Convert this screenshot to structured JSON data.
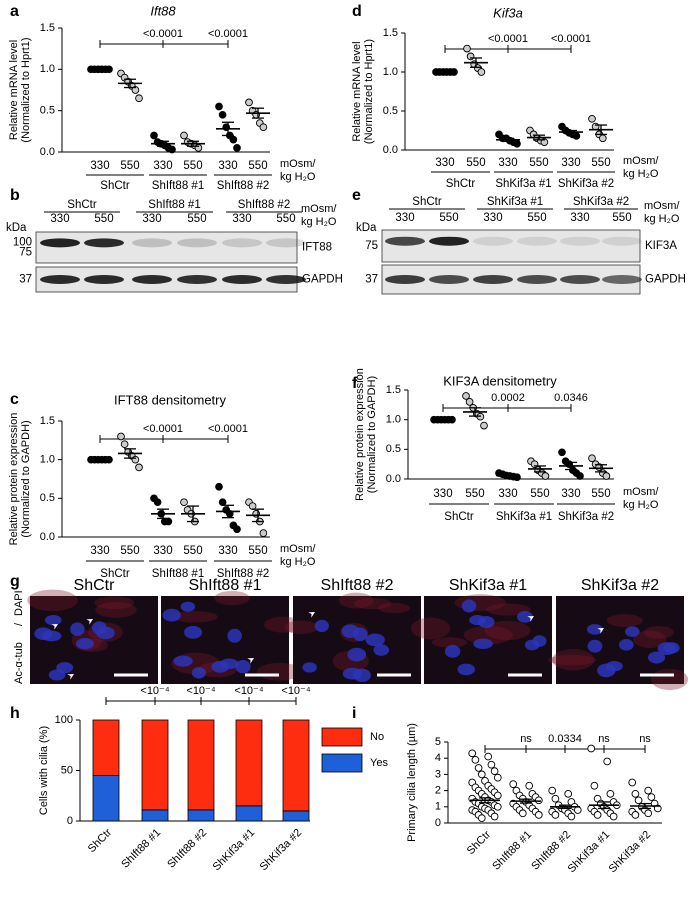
{
  "chart_data": [
    {
      "type": "dot",
      "label": "a",
      "title": "Ift88",
      "ylabel": [
        "Relative mRNA level",
        "(Normalized to Hprt1)"
      ],
      "categories": [
        "330",
        "550",
        "330",
        "550",
        "330",
        "550"
      ],
      "groups": [
        "ShCtr",
        "ShIft88 #1",
        "ShIft88 #2"
      ],
      "unit_label": [
        "mOsm/",
        "kg H₂O"
      ],
      "values": [
        [
          1,
          1,
          1,
          1,
          1,
          1
        ],
        [
          0.95,
          0.9,
          0.85,
          0.8,
          0.75,
          0.65
        ],
        [
          0.2,
          0.12,
          0.1,
          0.08,
          0.05,
          0.03
        ],
        [
          0.2,
          0.12,
          0.1,
          0.08,
          0.05
        ],
        [
          0.55,
          0.45,
          0.3,
          0.2,
          0.15,
          0.05
        ],
        [
          0.6,
          0.5,
          0.45,
          0.35,
          0.3
        ]
      ],
      "means": [
        1,
        0.83,
        0.1,
        0.1,
        0.28,
        0.47
      ],
      "errors": [
        0,
        0.05,
        0.03,
        0.03,
        0.08,
        0.06
      ],
      "fills": [
        "#000000",
        "#cccccc",
        "#000000",
        "#cccccc",
        "#000000",
        "#cccccc"
      ],
      "ylim": [
        0,
        1.5
      ],
      "yticks": [
        {
          "value": 0,
          "label": "0.0"
        },
        0.5,
        {
          "value": 1,
          "label": "1.0"
        },
        1.5
      ],
      "significance": [
        "<0.0001",
        "<0.0001"
      ]
    },
    {
      "type": "dot",
      "label": "d",
      "title": "Kif3a",
      "ylabel": [
        "Relative mRNA level",
        "(Normalized to Hprt1)"
      ],
      "categories": [
        "330",
        "550",
        "330",
        "550",
        "330",
        "550"
      ],
      "groups": [
        "ShCtr",
        "ShKif3a #1",
        "ShKif3a #2"
      ],
      "unit_label": [
        "mOsm/",
        "kg H₂O"
      ],
      "values": [
        [
          1,
          1,
          1,
          1,
          1,
          1
        ],
        [
          1.3,
          1.2,
          1.1,
          1.05,
          1.0
        ],
        [
          0.2,
          0.15,
          0.15,
          0.12,
          0.1,
          0.08
        ],
        [
          0.25,
          0.2,
          0.15,
          0.12,
          0.1
        ],
        [
          0.3,
          0.25,
          0.22,
          0.2,
          0.18
        ],
        [
          0.4,
          0.3,
          0.2,
          0.15
        ]
      ],
      "means": [
        1,
        1.12,
        0.13,
        0.16,
        0.23,
        0.26
      ],
      "errors": [
        0,
        0.06,
        0.02,
        0.03,
        0.02,
        0.06
      ],
      "fills": [
        "#000000",
        "#cccccc",
        "#000000",
        "#cccccc",
        "#000000",
        "#cccccc"
      ],
      "ylim": [
        0,
        1.5
      ],
      "yticks": [
        {
          "value": 0,
          "label": "0.0"
        },
        0.5,
        {
          "value": 1,
          "label": "1.0"
        },
        1.5
      ],
      "significance": [
        "<0.0001",
        "<0.0001"
      ]
    },
    {
      "type": "dot",
      "label": "c",
      "title": "IFT88 densitometry",
      "ylabel": [
        "Relative protein expression",
        "(Normalized to GAPDH)"
      ],
      "categories": [
        "330",
        "550",
        "330",
        "550",
        "330",
        "550"
      ],
      "groups": [
        "ShCtr",
        "ShIft88 #1",
        "ShIft88 #2"
      ],
      "unit_label": [
        "mOsm/",
        "kg H₂O"
      ],
      "values": [
        [
          1,
          1,
          1,
          1,
          1,
          1
        ],
        [
          1.3,
          1.2,
          1.1,
          1.05,
          1.0,
          0.9
        ],
        [
          0.5,
          0.45,
          0.3,
          0.2,
          0.2
        ],
        [
          0.45,
          0.35,
          0.3,
          0.2
        ],
        [
          0.65,
          0.45,
          0.35,
          0.3,
          0.15,
          0.1
        ],
        [
          0.45,
          0.4,
          0.3,
          0.2,
          0.05
        ]
      ],
      "means": [
        1,
        1.08,
        0.3,
        0.3,
        0.33,
        0.28
      ],
      "errors": [
        0,
        0.06,
        0.06,
        0.1,
        0.08,
        0.08
      ],
      "fills": [
        "#000000",
        "#cccccc",
        "#000000",
        "#cccccc",
        "#000000",
        "#cccccc"
      ],
      "ylim": [
        0,
        1.5
      ],
      "yticks": [
        {
          "value": 0,
          "label": "0.0"
        },
        0.5,
        {
          "value": 1,
          "label": "1.0"
        },
        1.5
      ],
      "significance": [
        "<0.0001",
        "<0.0001"
      ]
    },
    {
      "type": "dot",
      "label": "f",
      "title": "KIF3A densitometry",
      "ylabel": [
        "Relative protein expression",
        "(Normalized to GAPDH)"
      ],
      "categories": [
        "330",
        "550",
        "330",
        "550",
        "330",
        "550"
      ],
      "groups": [
        "ShCtr",
        "ShKif3a #1",
        "ShKif3a #2"
      ],
      "unit_label": [
        "mOsm/",
        "kg H₂O"
      ],
      "values": [
        [
          1,
          1,
          1,
          1,
          1,
          1
        ],
        [
          1.4,
          1.3,
          1.2,
          1.1,
          1.05,
          0.9
        ],
        [
          0.1,
          0.08,
          0.06,
          0.05,
          0.04,
          0.03
        ],
        [
          0.3,
          0.25,
          0.15,
          0.1,
          0.05
        ],
        [
          0.45,
          0.3,
          0.25,
          0.15,
          0.1,
          0.05
        ],
        [
          0.35,
          0.25,
          0.2,
          0.1,
          0.05
        ]
      ],
      "means": [
        1,
        1.13,
        0.06,
        0.17,
        0.22,
        0.18
      ],
      "errors": [
        0,
        0.07,
        0.01,
        0.05,
        0.06,
        0.06
      ],
      "fills": [
        "#000000",
        "#cccccc",
        "#000000",
        "#cccccc",
        "#000000",
        "#cccccc"
      ],
      "ylim": [
        0,
        1.5
      ],
      "yticks": [
        {
          "value": 0,
          "label": "0.0"
        },
        0.5,
        {
          "value": 1,
          "label": "1.0"
        },
        1.5
      ],
      "significance": [
        "0.0002",
        "0.0346"
      ]
    },
    {
      "type": "bar",
      "stacked": true,
      "label": "h",
      "ylabel": [
        "Cells with cilia (%)"
      ],
      "categories": [
        "ShCtr",
        "ShIft88 #1",
        "ShIft88 #2",
        "ShKif3a #1",
        "ShKif3a #2"
      ],
      "series": [
        {
          "name": "No",
          "color": "#ff2d10",
          "values": [
            55,
            89,
            89,
            85,
            90
          ]
        },
        {
          "name": "Yes",
          "color": "#1f5fd8",
          "values": [
            45,
            11,
            11,
            15,
            10
          ]
        }
      ],
      "ylim": [
        0,
        100
      ],
      "yticks": [
        0,
        50,
        100
      ],
      "legend": "right",
      "significance": [
        "<10⁻⁴",
        "<10⁻⁴",
        "<10⁻⁴",
        "<10⁻⁴"
      ]
    },
    {
      "type": "dot",
      "label": "i",
      "ylabel": [
        "Primary cilia length (µm)"
      ],
      "categories": [
        "ShCtr",
        "ShIft88 #1",
        "ShIft88 #2",
        "ShKif3a #1",
        "ShKif3a #2"
      ],
      "values": [
        [
          4.3,
          4.1,
          3.9,
          3.6,
          3.4,
          3.2,
          3.0,
          2.8,
          2.6,
          2.5,
          2.3,
          2.2,
          2.1,
          2.0,
          1.9,
          1.8,
          1.7,
          1.6,
          1.5,
          1.4,
          1.3,
          1.3,
          1.2,
          1.1,
          1.0,
          1.0,
          0.9,
          0.8,
          0.8,
          0.7,
          0.6,
          0.5,
          0.4,
          0.3
        ],
        [
          2.4,
          2.3,
          2.0,
          1.8,
          1.7,
          1.6,
          1.5,
          1.4,
          1.3,
          1.2,
          1.1,
          1.0,
          0.9,
          0.8,
          0.7,
          0.6,
          0.5
        ],
        [
          2.0,
          1.8,
          1.5,
          1.3,
          1.1,
          1.0,
          0.9,
          0.8,
          0.8,
          0.7,
          0.6,
          0.5,
          0.4
        ],
        [
          4.6,
          3.8,
          2.3,
          1.8,
          1.5,
          1.3,
          1.2,
          1.1,
          1.0,
          0.9,
          0.8,
          0.7,
          0.6,
          0.5,
          0.4
        ],
        [
          2.5,
          2.0,
          1.8,
          1.6,
          1.4,
          1.2,
          1.0,
          0.9,
          0.8,
          0.7,
          0.6,
          0.5
        ]
      ],
      "means": [
        1.4,
        1.35,
        1.0,
        1.1,
        1.05
      ],
      "errors": [
        0.15,
        0.12,
        0.1,
        0.2,
        0.15
      ],
      "fills": [
        "#ffffff",
        "#ffffff",
        "#ffffff",
        "#ffffff",
        "#ffffff"
      ],
      "ylim": [
        0,
        5
      ],
      "yticks": [
        0,
        1,
        2,
        3,
        4,
        5
      ],
      "significance": [
        "ns",
        "0.0334",
        "ns",
        "ns"
      ]
    }
  ],
  "blots": [
    {
      "label": "b",
      "groups": [
        "ShCtr",
        "ShIft88 #1",
        "ShIft88 #2"
      ],
      "lanes": [
        "330",
        "550",
        "330",
        "550",
        "330",
        "550"
      ],
      "unit_label": [
        "mOsm/",
        "kg H₂O"
      ],
      "kda_label": "kDa",
      "rows": [
        {
          "protein": "IFT88",
          "markers": [
            "100",
            "75"
          ]
        },
        {
          "protein": "GAPDH",
          "markers": [
            "37"
          ]
        }
      ]
    },
    {
      "label": "e",
      "groups": [
        "ShCtr",
        "ShKif3a #1",
        "ShKif3a #2"
      ],
      "lanes": [
        "330",
        "550",
        "330",
        "550",
        "330",
        "550"
      ],
      "unit_label": [
        "mOsm/",
        "kg H₂O"
      ],
      "kda_label": "kDa",
      "rows": [
        {
          "protein": "KIF3A",
          "markers": [
            "75"
          ]
        },
        {
          "protein": "GAPDH",
          "markers": [
            "37"
          ]
        }
      ]
    }
  ],
  "micrographs": {
    "label": "g",
    "stain_labels": [
      "Ac-α-tub",
      "/",
      "DAPI"
    ],
    "panels": [
      "ShCtr",
      "ShIft88 #1",
      "ShIft88 #2",
      "ShKif3a #1",
      "ShKif3a #2"
    ]
  }
}
